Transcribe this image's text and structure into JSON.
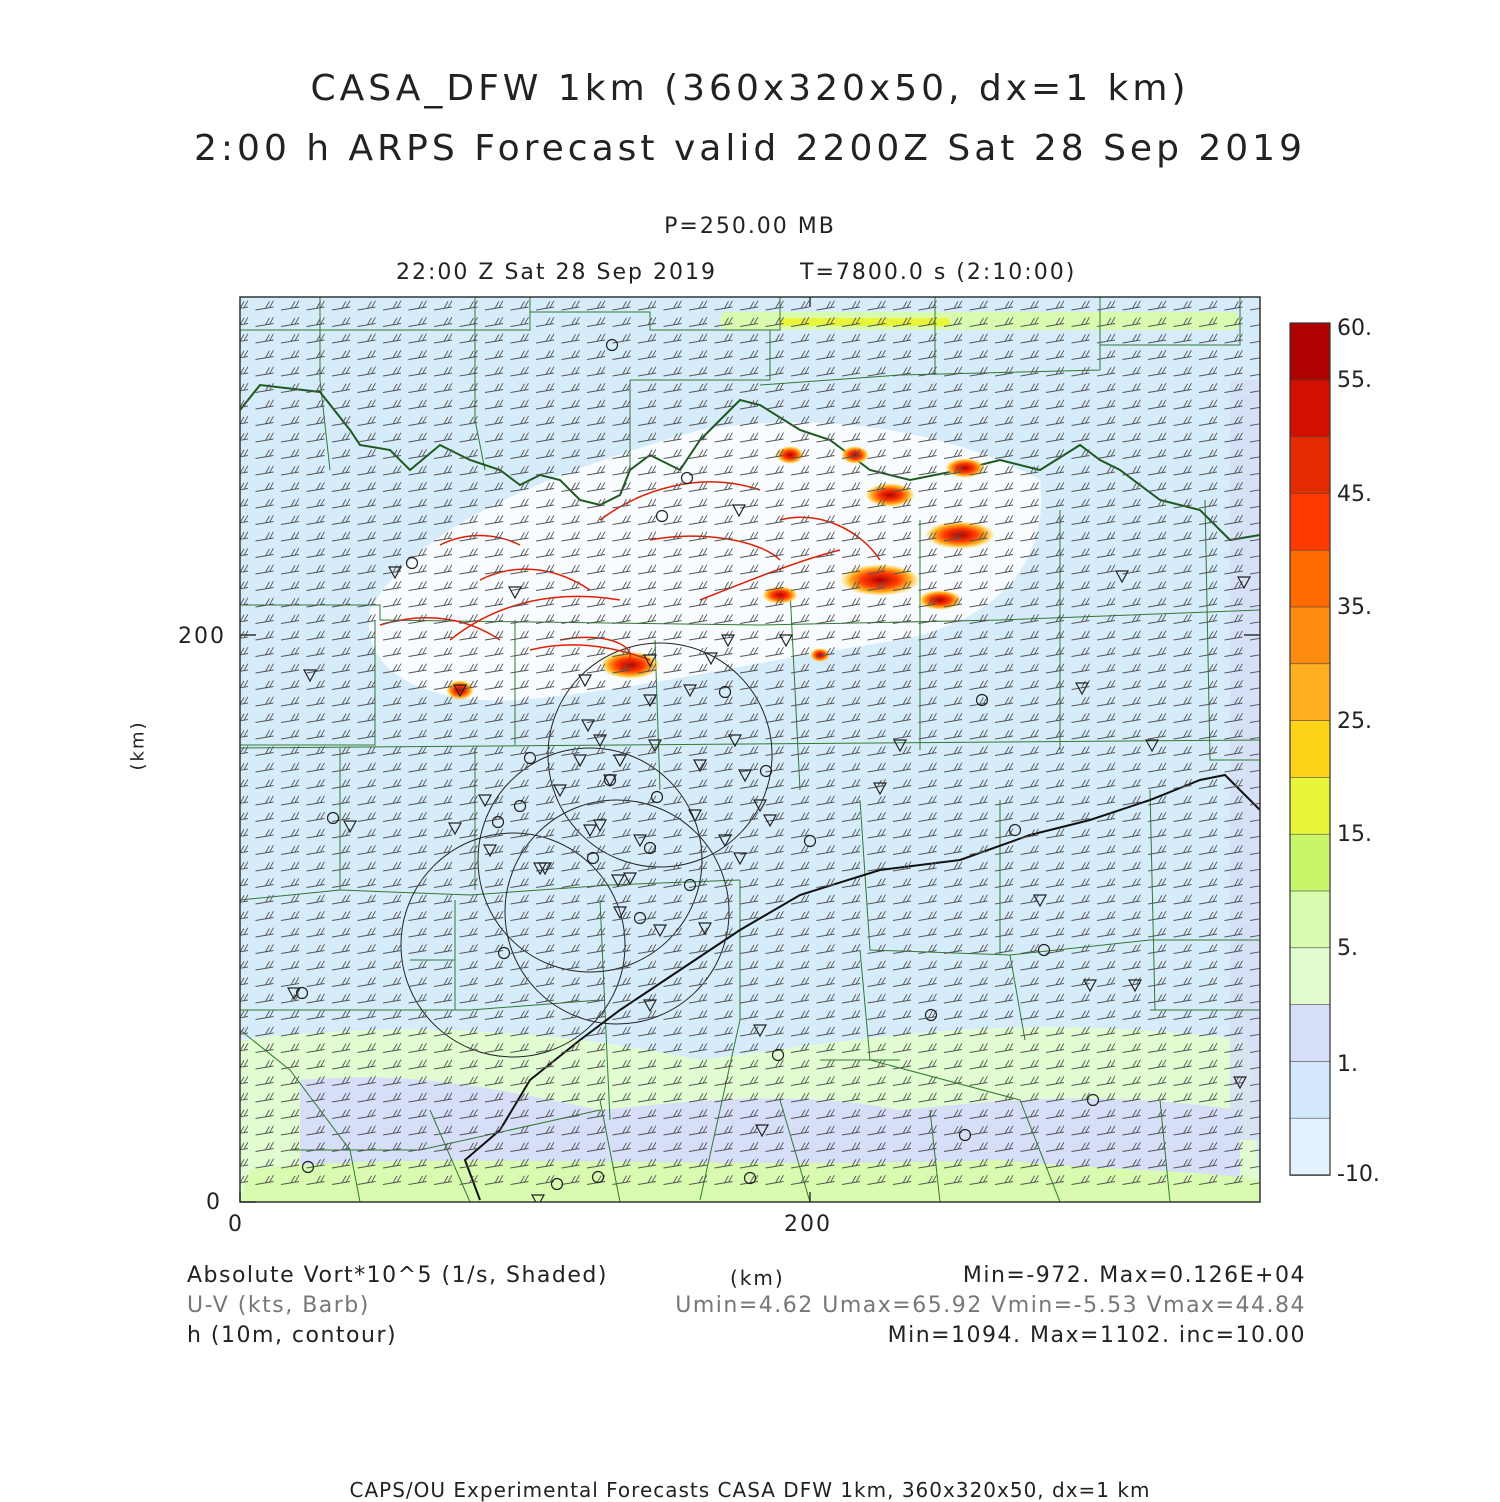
{
  "title_line1": "CASA_DFW 1km (360x320x50, dx=1 km)",
  "title_line2": "2:00 h ARPS Forecast valid 2200Z Sat 28 Sep 2019",
  "level": "P=250.00 MB",
  "valid_time": "22:00 Z Sat 28 Sep 2019",
  "model_time": "T=7800.0 s (2:10:00)",
  "axes": {
    "x_unit": "(km)",
    "y_unit": "(km)",
    "x_ticks": [
      "0",
      "200"
    ],
    "y_ticks": [
      "0",
      "200"
    ]
  },
  "colorbar": {
    "labels": [
      "60.",
      "55.",
      "45.",
      "35.",
      "25.",
      "15.",
      "5.",
      "1.",
      "-10."
    ],
    "colors": [
      "#b00000",
      "#d11000",
      "#e42a00",
      "#ff3a00",
      "#ff6a00",
      "#ff8c10",
      "#ffb020",
      "#ffd21a",
      "#e8f53a",
      "#c8f56a",
      "#d8fbb0",
      "#e2fcd2",
      "#d6def8",
      "#d4e8fc",
      "#e2f2fe"
    ]
  },
  "legend": {
    "field1": "Absolute Vort*10^5 (1/s, Shaded)",
    "field2": "U-V (kts, Barb)",
    "field3": "h (10m, contour)",
    "stats1": "Min=-972. Max=0.126E+04",
    "stats2": "Umin=4.62 Umax=65.92 Vmin=-5.53 Vmax=44.84",
    "stats3": "Min=1094. Max=1102. inc=10.00"
  },
  "credit": "CAPS/OU Experimental Forecasts  CASA DFW 1km, 360x320x50, dx=1 km"
}
